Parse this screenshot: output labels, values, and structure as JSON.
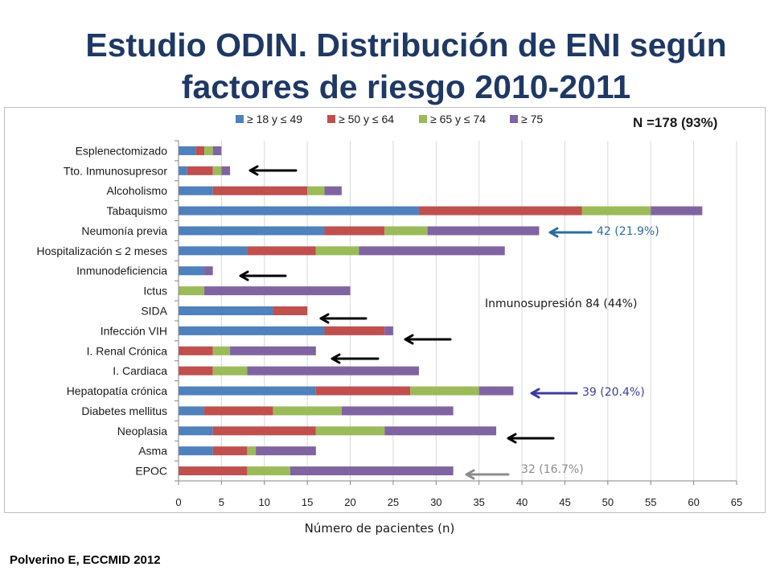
{
  "colors": {
    "title": "#1F3864",
    "text": "#1A1A1A",
    "grid": "#D9D9D9",
    "axis": "#868686",
    "frame": "#BFBFBF",
    "arrow": "#000000"
  },
  "source": "Polverino E, ECCMID 2012",
  "chart_data": {
    "type": "bar",
    "orientation": "horizontal",
    "stacked": true,
    "title": "Estudio ODIN. Distribución de ENI según factores de riesgo 2010-2011",
    "n_label": "N =178 (93%)",
    "xlabel": "Número de pacientes (n)",
    "xlim": [
      0,
      65
    ],
    "xticks": [
      0,
      5,
      10,
      15,
      20,
      25,
      30,
      35,
      40,
      45,
      50,
      55,
      60,
      65
    ],
    "grid": true,
    "legend": "top",
    "categories": [
      "Esplenectomizado",
      "Tto. Inmunosupresor",
      "Alcoholismo",
      "Tabaquismo",
      "Neumonía previa",
      "Hospitalización ≤ 2 meses",
      "Inmunodeficiencia",
      "Ictus",
      "SIDA",
      "Infección VIH",
      "I. Renal Crónica",
      "I. Cardiaca",
      "Hepatopatía crónica",
      "Diabetes mellitus",
      "Neoplasia",
      "Asma",
      "EPOC"
    ],
    "series": [
      {
        "name": "≥ 18 y ≤ 49",
        "color": "#4F81BD",
        "values": [
          2,
          1,
          4,
          28,
          17,
          8,
          3,
          0,
          11,
          17,
          0,
          0,
          16,
          3,
          4,
          4,
          0
        ]
      },
      {
        "name": "≥ 50 y ≤ 64",
        "color": "#C0504D",
        "values": [
          1,
          3,
          11,
          19,
          7,
          8,
          0,
          0,
          4,
          7,
          4,
          4,
          11,
          8,
          12,
          4,
          8
        ]
      },
      {
        "name": "≥ 65 y ≤ 74",
        "color": "#9BBB59",
        "values": [
          1,
          1,
          2,
          8,
          5,
          5,
          0,
          3,
          0,
          0,
          2,
          4,
          8,
          8,
          8,
          1,
          5
        ]
      },
      {
        "name": "≥ 75",
        "color": "#8064A2",
        "values": [
          1,
          1,
          2,
          6,
          13,
          17,
          1,
          17,
          0,
          1,
          10,
          20,
          4,
          13,
          13,
          7,
          19
        ]
      }
    ],
    "annotations": [
      {
        "text": "42 (21.9%)",
        "color": "#2B6C9E"
      },
      {
        "text": "Inmunosupresión 84 (44%)",
        "color": "#1A1A1A"
      },
      {
        "text": "39 (20.4%)",
        "color": "#3B3E9E"
      },
      {
        "text": "32 (16.7%)",
        "color": "#8C8C8C"
      }
    ]
  }
}
